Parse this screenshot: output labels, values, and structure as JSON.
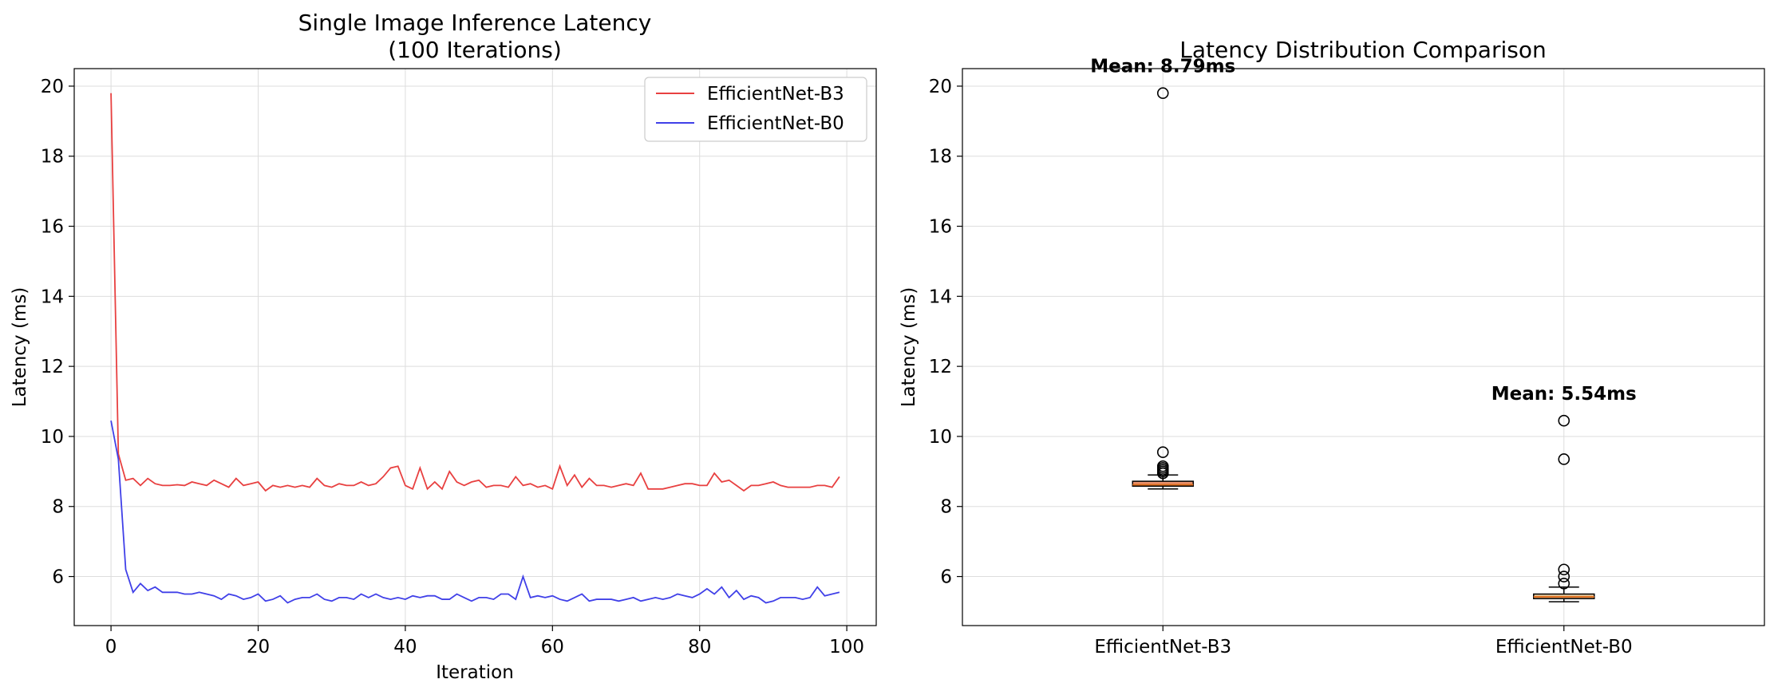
{
  "chart_data": [
    {
      "type": "line",
      "title": "Single Image Inference Latency\n(100 Iterations)",
      "xlabel": "Iteration",
      "ylabel": "Latency (ms)",
      "xlim": [
        -5,
        104
      ],
      "ylim": [
        4.6,
        20.5
      ],
      "xticks": [
        0,
        20,
        40,
        60,
        80,
        100
      ],
      "yticks": [
        6,
        8,
        10,
        12,
        14,
        16,
        18,
        20
      ],
      "grid": true,
      "legend_position": "top-right",
      "series": [
        {
          "name": "EfficientNet-B3",
          "color": "#e84040",
          "values": [
            19.8,
            9.5,
            8.75,
            8.8,
            8.6,
            8.8,
            8.65,
            8.6,
            8.6,
            8.62,
            8.6,
            8.7,
            8.65,
            8.6,
            8.75,
            8.65,
            8.55,
            8.8,
            8.6,
            8.65,
            8.7,
            8.45,
            8.6,
            8.55,
            8.6,
            8.55,
            8.6,
            8.55,
            8.8,
            8.6,
            8.55,
            8.65,
            8.6,
            8.6,
            8.7,
            8.6,
            8.65,
            8.85,
            9.1,
            9.15,
            8.6,
            8.5,
            9.1,
            8.5,
            8.7,
            8.5,
            9.0,
            8.7,
            8.6,
            8.7,
            8.75,
            8.55,
            8.6,
            8.6,
            8.55,
            8.85,
            8.6,
            8.65,
            8.55,
            8.6,
            8.5,
            9.15,
            8.6,
            8.9,
            8.55,
            8.8,
            8.6,
            8.6,
            8.55,
            8.6,
            8.65,
            8.6,
            8.95,
            8.5,
            8.5,
            8.5,
            8.55,
            8.6,
            8.65,
            8.65,
            8.6,
            8.6,
            8.95,
            8.7,
            8.75,
            8.6,
            8.45,
            8.6,
            8.6,
            8.65,
            8.7,
            8.6,
            8.55,
            8.55,
            8.55,
            8.55,
            8.6,
            8.6,
            8.55,
            8.85
          ]
        },
        {
          "name": "EfficientNet-B0",
          "color": "#4040e8",
          "values": [
            10.45,
            9.35,
            6.2,
            5.55,
            5.8,
            5.6,
            5.7,
            5.55,
            5.55,
            5.55,
            5.5,
            5.5,
            5.55,
            5.5,
            5.45,
            5.35,
            5.5,
            5.45,
            5.35,
            5.4,
            5.5,
            5.3,
            5.35,
            5.45,
            5.25,
            5.35,
            5.4,
            5.4,
            5.5,
            5.35,
            5.3,
            5.4,
            5.4,
            5.35,
            5.5,
            5.4,
            5.5,
            5.4,
            5.35,
            5.4,
            5.35,
            5.45,
            5.4,
            5.45,
            5.45,
            5.35,
            5.35,
            5.5,
            5.4,
            5.3,
            5.4,
            5.4,
            5.35,
            5.5,
            5.5,
            5.35,
            6.0,
            5.4,
            5.45,
            5.4,
            5.45,
            5.35,
            5.3,
            5.4,
            5.5,
            5.3,
            5.35,
            5.35,
            5.35,
            5.3,
            5.35,
            5.4,
            5.3,
            5.35,
            5.4,
            5.35,
            5.4,
            5.5,
            5.45,
            5.4,
            5.5,
            5.65,
            5.5,
            5.7,
            5.4,
            5.6,
            5.35,
            5.45,
            5.4,
            5.25,
            5.3,
            5.4,
            5.4,
            5.4,
            5.35,
            5.4,
            5.7,
            5.45,
            5.5,
            5.55
          ]
        }
      ]
    },
    {
      "type": "box",
      "title": "Latency Distribution Comparison",
      "ylabel": "Latency (ms)",
      "ylim": [
        4.6,
        20.5
      ],
      "yticks": [
        6,
        8,
        10,
        12,
        14,
        16,
        18,
        20
      ],
      "grid": true,
      "categories": [
        "EfficientNet-B3",
        "EfficientNet-B0"
      ],
      "boxes": [
        {
          "name": "EfficientNet-B3",
          "color": "#e8916b",
          "whisker_low": 8.5,
          "q1": 8.58,
          "median": 8.62,
          "q3": 8.72,
          "whisker_high": 8.9,
          "outliers": [
            19.8,
            9.55,
            9.15,
            9.1,
            9.05,
            9.0,
            8.95,
            8.95
          ],
          "mean_label": "Mean: 8.79ms"
        },
        {
          "name": "EfficientNet-B0",
          "color": "#e8c99a",
          "whisker_low": 5.28,
          "q1": 5.37,
          "median": 5.42,
          "q3": 5.5,
          "whisker_high": 5.7,
          "outliers": [
            10.45,
            9.35,
            6.2,
            6.0,
            5.8
          ],
          "mean_label": "Mean: 5.54ms"
        }
      ]
    }
  ]
}
